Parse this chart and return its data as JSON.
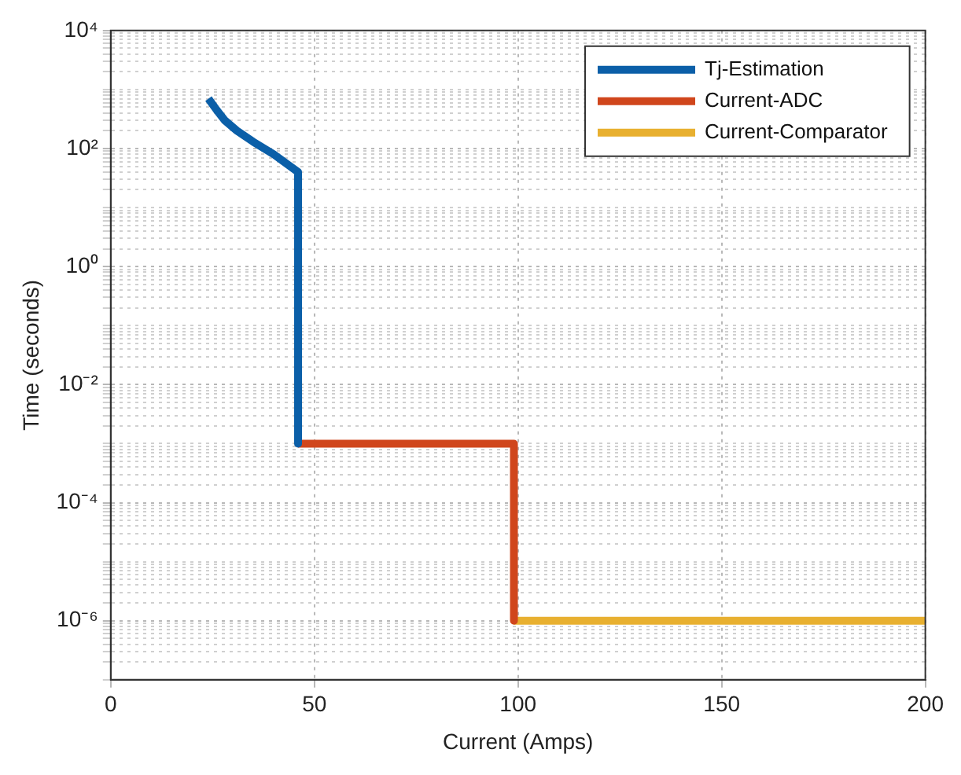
{
  "chart_data": {
    "type": "line",
    "xlabel": "Current (Amps)",
    "ylabel": "Time (seconds)",
    "log": "y",
    "grid": true,
    "legend": "top right",
    "line_style": "solid",
    "marker": "none",
    "xlim": [
      0,
      200
    ],
    "xticks": [
      0,
      50,
      100,
      150,
      200
    ],
    "ylim": [
      1e-07,
      10000
    ],
    "yticks": [
      {
        "value": 1e-06,
        "label": "10⁻⁶"
      },
      {
        "value": 0.0001,
        "label": "10⁻⁴"
      },
      {
        "value": 0.01,
        "label": "10⁻²"
      },
      {
        "value": 1,
        "label": "10⁰"
      },
      {
        "value": 100,
        "label": "10²"
      },
      {
        "value": 10000,
        "label": "10⁴"
      }
    ],
    "series": [
      {
        "name": "Tj-Estimation",
        "color": "#0b5fa8",
        "x": [
          24,
          26,
          28,
          31,
          35,
          40,
          46,
          46
        ],
        "values": [
          700,
          450,
          300,
          200,
          130,
          80,
          40,
          0.001
        ]
      },
      {
        "name": "Current-ADC",
        "color": "#d0461c",
        "x": [
          46,
          99,
          99
        ],
        "values": [
          0.001,
          0.001,
          1e-06
        ]
      },
      {
        "name": "Current-Comparator",
        "color": "#e8b030",
        "x": [
          99,
          200
        ],
        "values": [
          1e-06,
          1e-06
        ]
      }
    ]
  }
}
